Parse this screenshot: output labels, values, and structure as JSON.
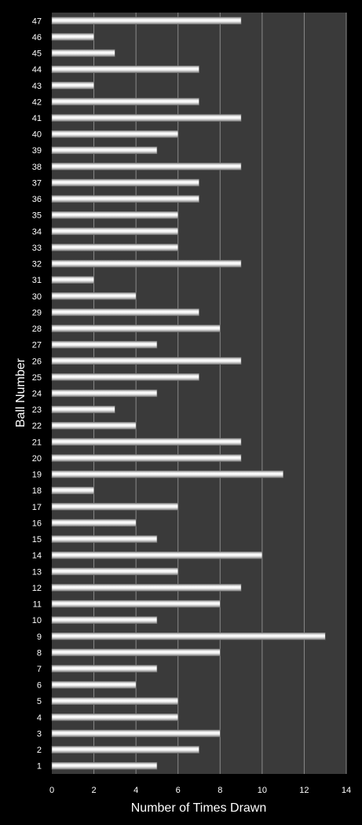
{
  "chart_data": {
    "type": "bar",
    "orientation": "horizontal",
    "categories": [
      "1",
      "2",
      "3",
      "4",
      "5",
      "6",
      "7",
      "8",
      "9",
      "10",
      "11",
      "12",
      "13",
      "14",
      "15",
      "16",
      "17",
      "18",
      "19",
      "20",
      "21",
      "22",
      "23",
      "24",
      "25",
      "26",
      "27",
      "28",
      "29",
      "30",
      "31",
      "32",
      "33",
      "34",
      "35",
      "36",
      "37",
      "38",
      "39",
      "40",
      "41",
      "42",
      "43",
      "44",
      "45",
      "46",
      "47"
    ],
    "values": [
      5,
      7,
      8,
      6,
      6,
      4,
      5,
      8,
      13,
      5,
      8,
      9,
      6,
      10,
      5,
      4,
      6,
      2,
      11,
      9,
      9,
      4,
      3,
      5,
      7,
      9,
      5,
      8,
      7,
      4,
      2,
      9,
      6,
      6,
      6,
      7,
      7,
      9,
      5,
      6,
      9,
      7,
      2,
      7,
      3,
      2,
      9
    ],
    "xlabel": "Number of Times Drawn",
    "ylabel": "Ball Number",
    "xlim": [
      0,
      14
    ],
    "xticks": [
      "0",
      "2",
      "4",
      "6",
      "8",
      "10",
      "12",
      "14"
    ],
    "grid": "vertical",
    "legend": "none",
    "colors": {
      "background": "#000000",
      "plot_area": "#3a3a3a",
      "gridline": "#8a8a8a",
      "bar_light": "#ffffff",
      "bar_dark": "#8c8c8c",
      "text": "#ffffff"
    }
  }
}
